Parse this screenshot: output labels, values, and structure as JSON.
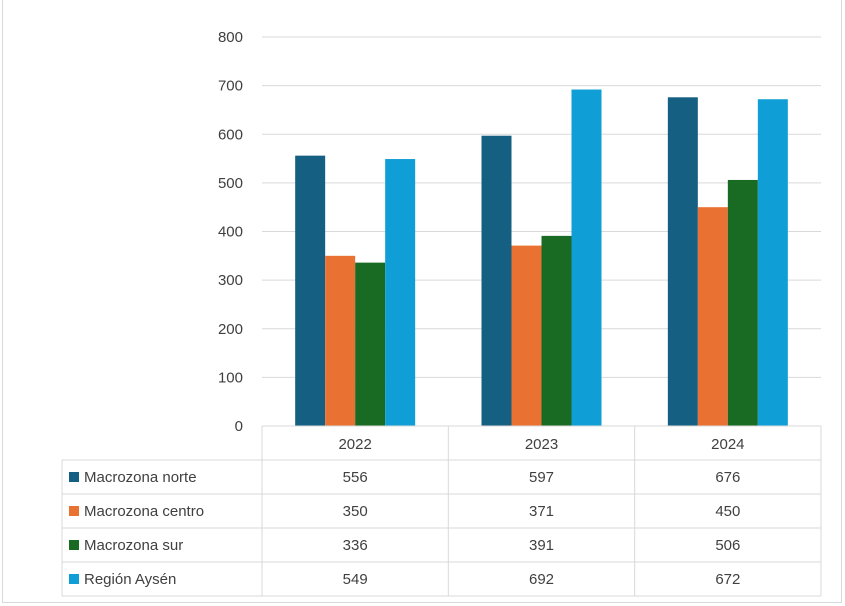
{
  "chart_data": {
    "type": "bar",
    "title": "",
    "categories": [
      "2022",
      "2023",
      "2024"
    ],
    "series": [
      {
        "name": "Macrozona norte",
        "color": "#156082",
        "values": [
          556,
          597,
          676
        ]
      },
      {
        "name": "Macrozona centro",
        "color": "#E97132",
        "values": [
          350,
          371,
          450
        ]
      },
      {
        "name": "Macrozona sur",
        "color": "#196B24",
        "values": [
          336,
          391,
          506
        ]
      },
      {
        "name": "Región Aysén",
        "color": "#0F9ED5",
        "values": [
          549,
          692,
          672
        ]
      }
    ],
    "yticks": [
      "0",
      "100",
      "200",
      "300",
      "400",
      "500",
      "600",
      "700",
      "800"
    ],
    "ylim": [
      0,
      800
    ],
    "grid": true,
    "legend": "data-table",
    "xlabel": "",
    "ylabel": ""
  }
}
